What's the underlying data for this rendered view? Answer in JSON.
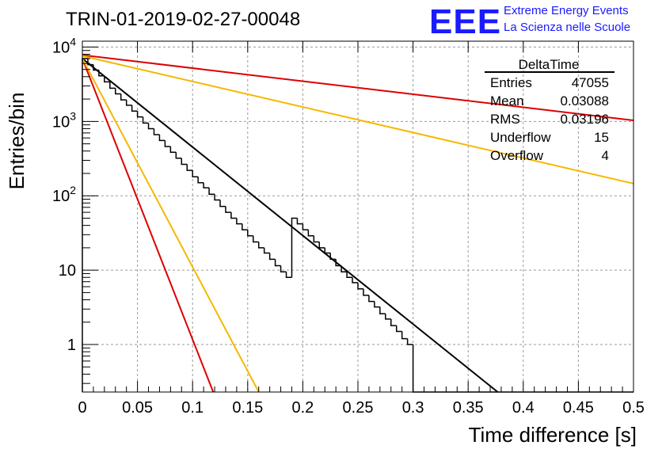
{
  "title": "TRIN-01-2019-02-27-00048",
  "logo": {
    "acronym": "EEE",
    "line1": "Extreme Energy Events",
    "line2": "La Scienza nelle Scuole",
    "color": "#1a1aff"
  },
  "chart_data": {
    "type": "histogram",
    "xlabel": "Time difference [s]",
    "ylabel": "Entries/bin",
    "xlim": [
      0,
      0.5
    ],
    "ylim": [
      0.23,
      12000
    ],
    "yscale": "log",
    "grid": true,
    "x_ticks": [
      "0",
      "0.05",
      "0.1",
      "0.15",
      "0.2",
      "0.25",
      "0.3",
      "0.35",
      "0.4",
      "0.45",
      "0.5"
    ],
    "x_tick_values": [
      0,
      0.05,
      0.1,
      0.15,
      0.2,
      0.25,
      0.3,
      0.35,
      0.4,
      0.45,
      0.5
    ],
    "y_ticks": [
      {
        "value": 1,
        "base": "1",
        "exp": ""
      },
      {
        "value": 10,
        "base": "10",
        "exp": ""
      },
      {
        "value": 100,
        "base": "10",
        "exp": "2"
      },
      {
        "value": 1000,
        "base": "10",
        "exp": "3"
      },
      {
        "value": 10000,
        "base": "10",
        "exp": "4"
      }
    ],
    "histogram": {
      "bin_width": 0.005,
      "color": "#000000",
      "values": [
        7000,
        5800,
        4900,
        4100,
        3400,
        2800,
        2350,
        1950,
        1650,
        1380,
        1150,
        950,
        800,
        665,
        555,
        460,
        385,
        320,
        265,
        220,
        180,
        150,
        128,
        105,
        88,
        72,
        60,
        50,
        42,
        35,
        29,
        24,
        20,
        17,
        14,
        11.5,
        9.5,
        8,
        50,
        42,
        35,
        29,
        24,
        20,
        17,
        14,
        11.5,
        9.5,
        8,
        6.8,
        5.6,
        4.6,
        3.8,
        3.2,
        2.6,
        2.2,
        1.8,
        1.5,
        1.2,
        1,
        0,
        0,
        0,
        0,
        0,
        0,
        0,
        0,
        0,
        0,
        0,
        0,
        0,
        0,
        0,
        0,
        0,
        0,
        0,
        0,
        0,
        0,
        0,
        0,
        0,
        0,
        0,
        0,
        0,
        0,
        0,
        0,
        0,
        0,
        0,
        0,
        0,
        0,
        0,
        0
      ]
    },
    "fits": [
      {
        "color": "#000000",
        "y0": 7000,
        "tau": 0.0365
      },
      {
        "color": "#dd0000",
        "y0": 7000,
        "tau": 0.0115
      },
      {
        "color": "#f5b800",
        "y0": 7000,
        "tau": 0.0155
      },
      {
        "color": "#dd0000",
        "y0": 7800,
        "tau": 0.2475
      },
      {
        "color": "#f5b800",
        "y0": 7600,
        "tau": 0.1265
      }
    ],
    "stats": {
      "title": "DeltaTime",
      "rows": [
        {
          "label": "Entries",
          "value": "47055"
        },
        {
          "label": "Mean",
          "value": "0.03088"
        },
        {
          "label": "RMS",
          "value": "0.03196"
        },
        {
          "label": "Underflow",
          "value": "15"
        },
        {
          "label": "Overflow",
          "value": "4"
        }
      ]
    }
  }
}
